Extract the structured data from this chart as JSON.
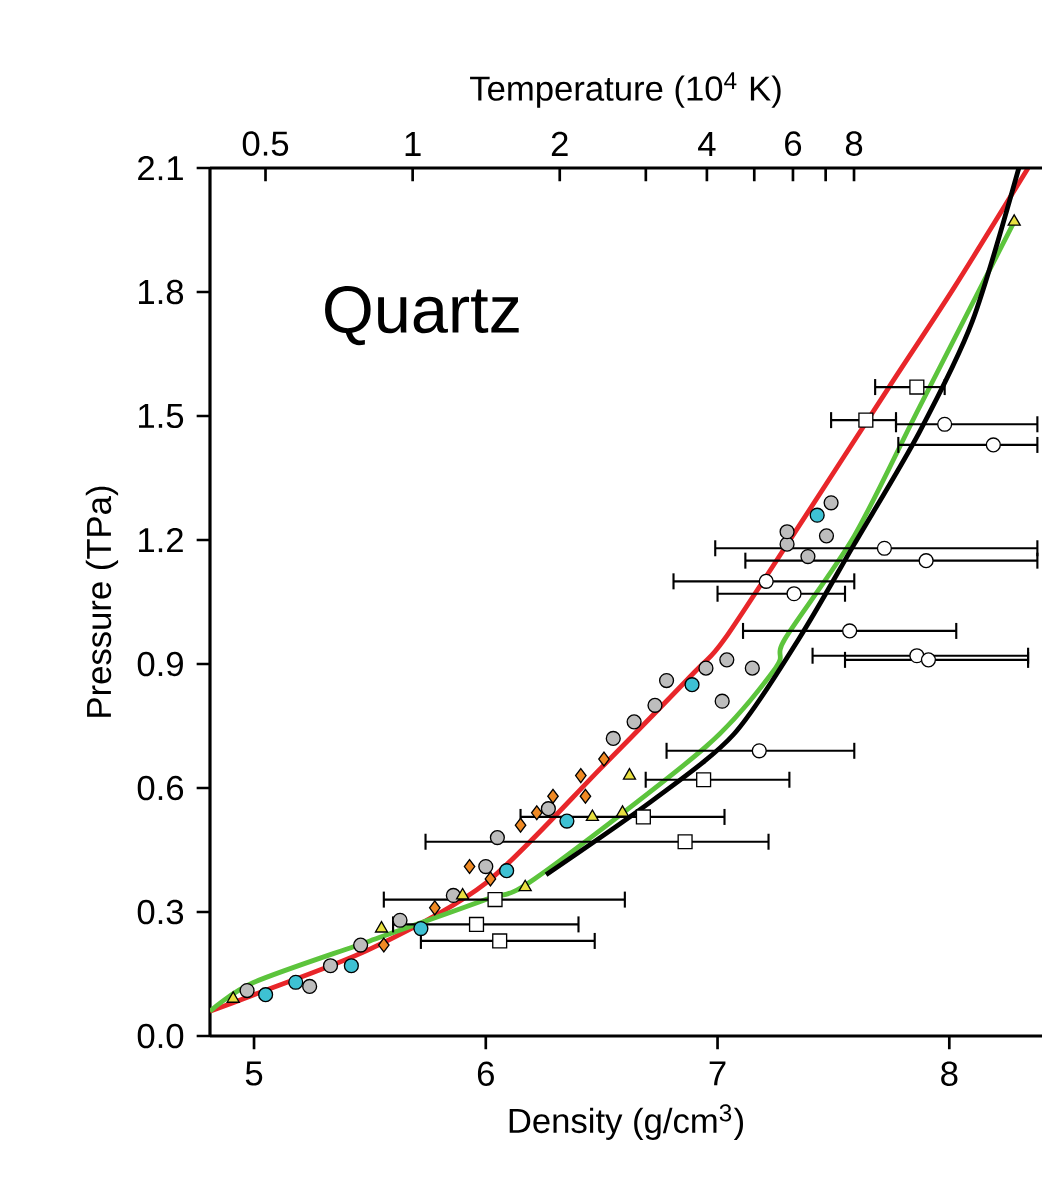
{
  "chart_data": {
    "type": "scatter",
    "xlabel": "Density (g/cm$^{3}$)",
    "ylabel": "Pressure (TPa)",
    "x2label": "Temperature (10$^{4}$ K)",
    "annotations": [
      "Quartz"
    ],
    "xlim": [
      4.81,
      8.4
    ],
    "xticks": [
      5,
      6,
      7,
      8
    ],
    "ylim": [
      0,
      2.1
    ],
    "yticks": [
      {
        "value": 0,
        "label": "0.0"
      },
      0.3,
      0.6,
      0.9,
      1.2,
      1.5,
      1.8,
      2.1
    ],
    "x2lim": [
      0.385,
      19.4
    ],
    "log": "x2",
    "x2ticks": [
      0.5,
      1,
      2,
      {
        "value": 3,
        "label": null
      },
      4,
      {
        "value": 5,
        "label": null
      },
      6,
      {
        "value": 7,
        "label": null
      },
      8
    ],
    "grid": false,
    "series": [
      {
        "type": "line",
        "color": "#e8262a",
        "marker": "none",
        "x": [
          4.81,
          5.0,
          5.5,
          6.0,
          6.5,
          6.9,
          7.03,
          7.37,
          7.74,
          8.02,
          8.34
        ],
        "values": [
          0.06,
          0.1,
          0.21,
          0.37,
          0.65,
          0.88,
          0.96,
          1.25,
          1.57,
          1.81,
          2.1
        ]
      },
      {
        "type": "line",
        "color": "#5cc43c",
        "marker": "none",
        "x": [
          4.81,
          5.0,
          5.5,
          6.0,
          6.21,
          6.95,
          7.25,
          7.29,
          7.59,
          7.87,
          8.28
        ],
        "values": [
          0.06,
          0.13,
          0.23,
          0.33,
          0.38,
          0.7,
          0.89,
          0.96,
          1.21,
          1.52,
          1.97
        ]
      },
      {
        "type": "line",
        "color": "#000000",
        "marker": "none",
        "x": [
          6.26,
          6.72,
          7.07,
          7.35,
          7.59,
          7.87,
          8.1,
          8.3
        ],
        "values": [
          0.39,
          0.57,
          0.73,
          0.96,
          1.19,
          1.46,
          1.73,
          2.1
        ]
      },
      {
        "color": "#ffffff",
        "marker": "square",
        "x": [
          6.06,
          5.96,
          6.04,
          6.86,
          6.68,
          6.94,
          7.86,
          7.64
        ],
        "values": [
          0.23,
          0.27,
          0.33,
          0.47,
          0.53,
          0.62,
          1.57,
          1.49
        ],
        "xerrors": [
          [
            5.72,
            6.47
          ],
          [
            5.6,
            6.4
          ],
          [
            5.56,
            6.6
          ],
          [
            5.74,
            7.22
          ],
          [
            6.15,
            7.03
          ],
          [
            6.69,
            7.31
          ],
          [
            7.68,
            7.98
          ],
          [
            7.49,
            7.77
          ]
        ]
      },
      {
        "color": "#ffffff",
        "marker": "circle",
        "x": [
          7.18,
          7.57,
          7.86,
          7.91,
          7.98,
          8.19,
          7.72,
          7.9,
          7.21,
          7.33
        ],
        "values": [
          0.69,
          0.98,
          0.92,
          0.91,
          1.48,
          1.43,
          1.18,
          1.15,
          1.1,
          1.07
        ],
        "xerrors": [
          [
            6.78,
            7.59
          ],
          [
            7.11,
            8.03
          ],
          [
            7.41,
            8.34
          ],
          [
            7.55,
            8.34
          ],
          [
            7.77,
            8.38
          ],
          [
            7.78,
            8.38
          ],
          [
            6.99,
            8.38
          ],
          [
            7.12,
            8.38
          ],
          [
            6.81,
            7.59
          ],
          [
            7.0,
            7.55
          ]
        ]
      },
      {
        "color": "#bdbdbd",
        "marker": "circle",
        "x": [
          4.97,
          5.24,
          5.33,
          5.46,
          5.63,
          5.86,
          6.0,
          6.05,
          6.27,
          6.55,
          6.64,
          6.73,
          6.78,
          6.95,
          7.04,
          7.15,
          7.02,
          7.3,
          7.47,
          7.39,
          7.3,
          7.49
        ],
        "values": [
          0.11,
          0.12,
          0.17,
          0.22,
          0.28,
          0.34,
          0.41,
          0.48,
          0.55,
          0.72,
          0.76,
          0.8,
          0.86,
          0.89,
          0.91,
          0.89,
          0.81,
          1.19,
          1.21,
          1.16,
          1.22,
          1.29
        ]
      },
      {
        "color": "#f08a24",
        "marker": "diamond",
        "x": [
          5.56,
          5.78,
          5.93,
          6.02,
          6.15,
          6.22,
          6.29,
          6.41,
          6.51,
          6.43
        ],
        "values": [
          0.22,
          0.31,
          0.41,
          0.38,
          0.51,
          0.54,
          0.58,
          0.63,
          0.67,
          0.58
        ]
      },
      {
        "color": "#e8e040",
        "marker": "triangle",
        "x": [
          4.91,
          5.55,
          5.9,
          6.17,
          6.46,
          6.59,
          6.62,
          8.28
        ],
        "values": [
          0.09,
          0.26,
          0.34,
          0.36,
          0.53,
          0.54,
          0.63,
          1.97
        ]
      },
      {
        "color": "#3ec1d3",
        "marker": "circle",
        "x": [
          5.05,
          5.18,
          5.42,
          5.72,
          6.09,
          6.35,
          6.89,
          7.43
        ],
        "values": [
          0.1,
          0.13,
          0.17,
          0.26,
          0.4,
          0.52,
          0.85,
          1.26
        ]
      }
    ]
  }
}
